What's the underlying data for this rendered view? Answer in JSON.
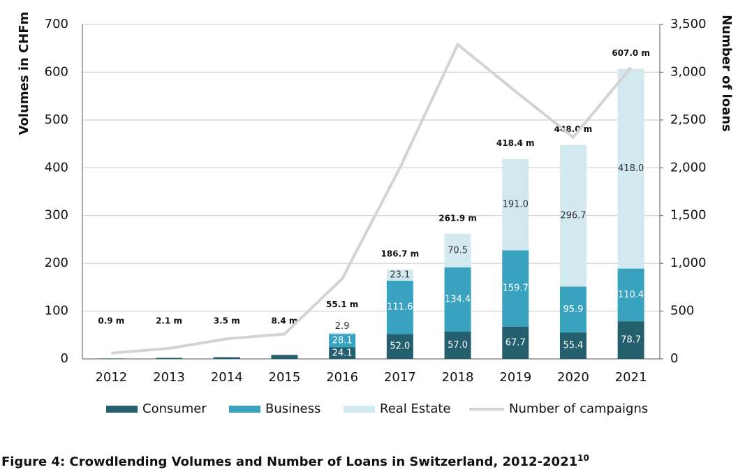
{
  "chart_data": {
    "type": "bar",
    "stacked": true,
    "caption": "Figure 4: Crowdlending Volumes and Number of Loans in Switzerland, 2012-2021",
    "caption_note": "10",
    "y_label": "Volumes in CHFm",
    "y2_label": "Number of loans",
    "categories": [
      "2012",
      "2013",
      "2014",
      "2015",
      "2016",
      "2017",
      "2018",
      "2019",
      "2020",
      "2021"
    ],
    "series": [
      {
        "name": "Consumer",
        "color": "#245f6e",
        "label_color": "#ffffff",
        "values": [
          0.9,
          2.1,
          3.5,
          8.4,
          24.1,
          52.0,
          57.0,
          67.7,
          55.4,
          78.7
        ],
        "value_labels": [
          null,
          null,
          null,
          null,
          "24.1",
          "52.0",
          "57.0",
          "67.7",
          "55.4",
          "78.7"
        ]
      },
      {
        "name": "Business",
        "color": "#39a3bf",
        "label_color": "#ffffff",
        "values": [
          null,
          null,
          null,
          null,
          28.1,
          111.6,
          134.4,
          159.7,
          95.9,
          110.4
        ],
        "value_labels": [
          null,
          null,
          null,
          null,
          "28.1",
          "111.6",
          "134.4",
          "159.7",
          "95.9",
          "110.4"
        ]
      },
      {
        "name": "Real Estate",
        "color": "#d3e9f0",
        "label_color": "#333333",
        "values": [
          null,
          null,
          null,
          null,
          2.9,
          23.1,
          70.5,
          191.0,
          296.7,
          418.0
        ],
        "value_labels": [
          null,
          null,
          null,
          null,
          "2.9",
          "23.1",
          "70.5",
          "191.0",
          "296.7",
          "418.0"
        ]
      },
      {
        "name": "Number of campaigns",
        "color": "#d3d3d3",
        "type": "line",
        "axis": "y2",
        "values": [
          60,
          110,
          210,
          260,
          840,
          2000,
          3290,
          2800,
          2320,
          3050
        ]
      }
    ],
    "totals": {
      "values": [
        0.9,
        2.1,
        3.5,
        8.4,
        55.1,
        186.7,
        261.9,
        418.4,
        448.0,
        607.0
      ],
      "value_labels": [
        "0.9 m",
        "2.1 m",
        "3.5 m",
        "8.4 m",
        "55.1 m",
        "186.7 m",
        "261.9 m",
        "418.4 m",
        "448.0 m",
        "607.0 m"
      ]
    },
    "ylim": [
      0,
      700
    ],
    "yticks": [
      0,
      100,
      200,
      300,
      400,
      500,
      600,
      700
    ],
    "y2lim": [
      0,
      3500
    ],
    "y2ticks": [
      0,
      500,
      {
        "value": 1000,
        "label": "1,000"
      },
      {
        "value": 1500,
        "label": "1,500"
      },
      {
        "value": 2000,
        "label": "2,000"
      },
      {
        "value": 2500,
        "label": "2,500"
      },
      {
        "value": 3000,
        "label": "3,000"
      },
      {
        "value": 3500,
        "label": "3,500"
      }
    ],
    "grid": true,
    "legend": "bottom"
  }
}
